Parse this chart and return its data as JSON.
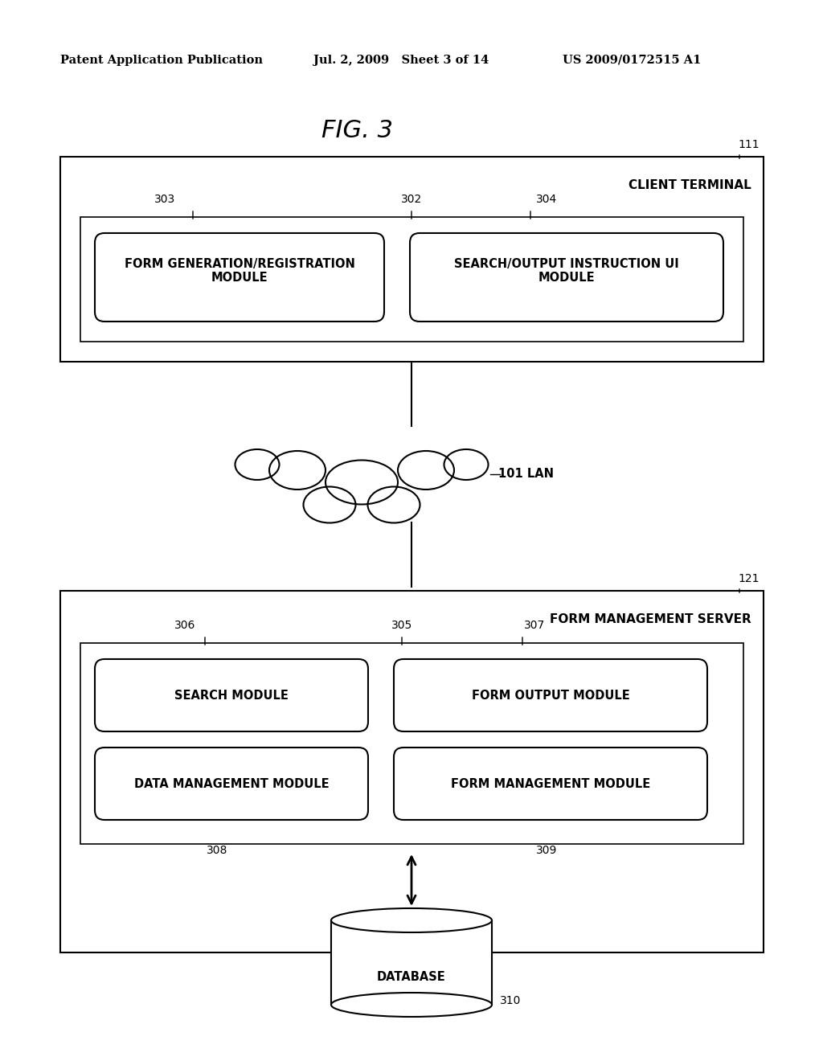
{
  "title": "FIG. 3",
  "header_left": "Patent Application Publication",
  "header_mid": "Jul. 2, 2009   Sheet 3 of 14",
  "header_right": "US 2009/0172515 A1",
  "client_terminal_label": "CLIENT TERMINAL",
  "client_terminal_ref": "111",
  "inner_box_302_label": "",
  "module_303_label": "FORM GENERATION/REGISTRATION\nMODULE",
  "module_303_ref": "303",
  "module_304_label": "SEARCH/OUTPUT INSTRUCTION UI\nMODULE",
  "module_304_ref": "304",
  "ref_302": "302",
  "lan_label": "101 LAN",
  "form_server_label": "FORM MANAGEMENT SERVER",
  "form_server_ref": "121",
  "inner_box_305_label": "",
  "ref_305": "305",
  "module_306_label": "SEARCH MODULE",
  "module_306_ref": "306",
  "module_307_label": "FORM OUTPUT MODULE",
  "module_307_ref": "307",
  "module_308_label": "DATA MANAGEMENT MODULE",
  "module_308_ref": "308",
  "module_309_label": "FORM MANAGEMENT MODULE",
  "module_309_ref": "309",
  "database_label": "DATABASE",
  "database_ref": "310",
  "bg_color": "#ffffff",
  "box_color": "#000000",
  "text_color": "#000000"
}
